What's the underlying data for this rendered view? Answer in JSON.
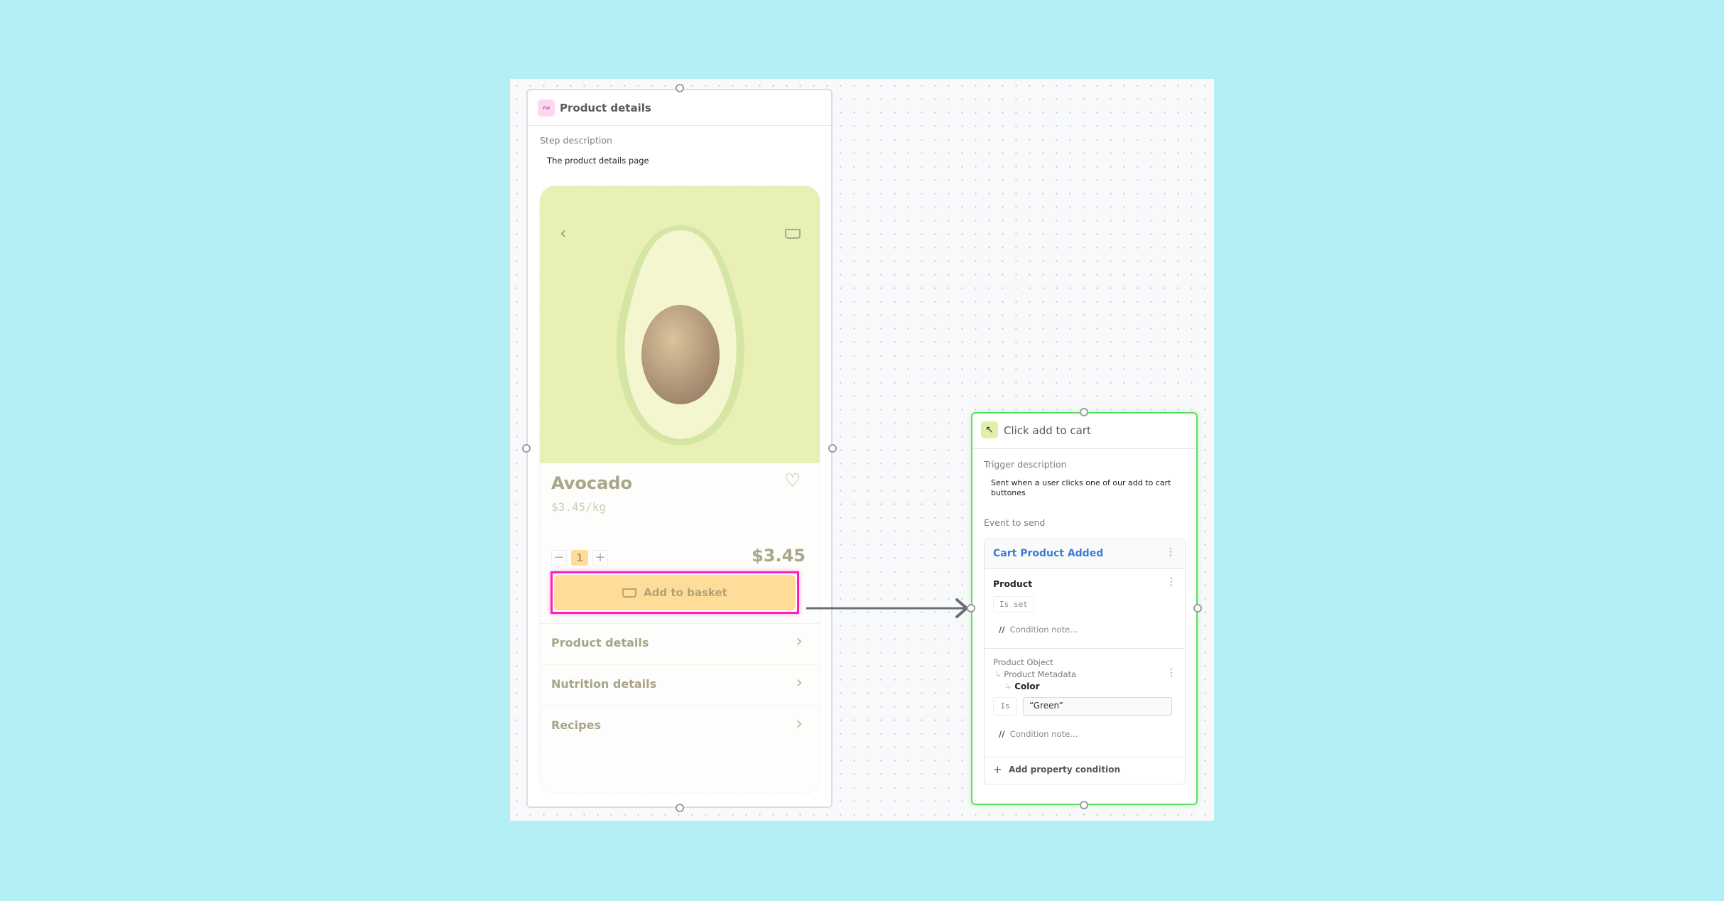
{
  "step_card": {
    "title": "Product details",
    "icon": "flow-icon",
    "description_label": "Step description",
    "description": "The product details page",
    "product": {
      "name": "Avocado",
      "unit_price": "$3.45/kg",
      "quantity": "1",
      "total": "$3.45",
      "add_button": "Add to basket",
      "rows": [
        "Product details",
        "Nutrition details",
        "Recipes"
      ]
    }
  },
  "trigger_card": {
    "title": "Click add to cart",
    "icon": "cursor-click-icon",
    "description_label": "Trigger description",
    "description": "Sent when a user clicks one of our add to cart buttones",
    "event_label": "Event to send",
    "event": {
      "name": "Cart Product Added",
      "conditions": [
        {
          "property": "Product",
          "operator": "Is set",
          "note": "Condition note..."
        },
        {
          "path": [
            "Product Object",
            "Product Metadata",
            "Color"
          ],
          "operator": "Is",
          "value": "“Green”",
          "note": "Condition note..."
        }
      ],
      "add_condition": "Add property condition"
    }
  },
  "colors": {
    "background": "#b3eff5",
    "highlight": "#ff1fbf",
    "trigger_border": "#5ddc5d",
    "event_name": "#3a7fd5",
    "button": "#ffdd99",
    "image_bg": "#e8f0b5"
  }
}
